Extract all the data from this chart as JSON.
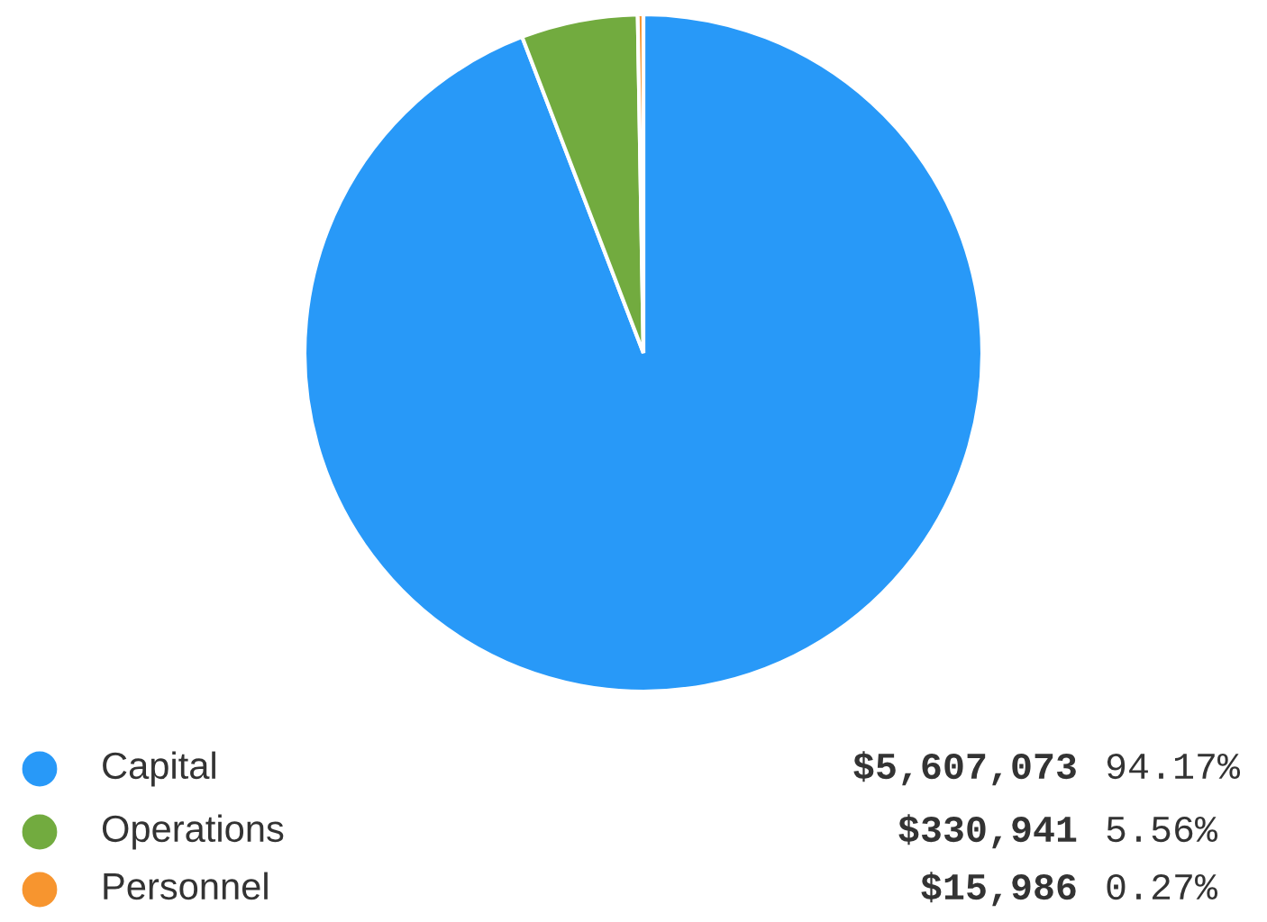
{
  "chart_data": {
    "type": "pie",
    "categories": [
      "Capital",
      "Operations",
      "Personnel"
    ],
    "values": [
      5607073,
      330941,
      15986
    ],
    "colors": [
      "#2899f8",
      "#72ab3f",
      "#f7952f"
    ],
    "value_labels": [
      "$5,607,073",
      "$330,941",
      "$15,986"
    ],
    "annotations": [
      "94.17%",
      "5.56%",
      "0.27%"
    ],
    "legend": "bottom"
  }
}
